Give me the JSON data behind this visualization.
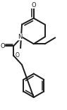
{
  "bg_color": "#ffffff",
  "line_color": "#1a1a1a",
  "lw": 1.4,
  "figsize": [
    0.95,
    1.56
  ],
  "dpi": 100,
  "xlim": [
    0,
    95
  ],
  "ylim": [
    0,
    156
  ]
}
